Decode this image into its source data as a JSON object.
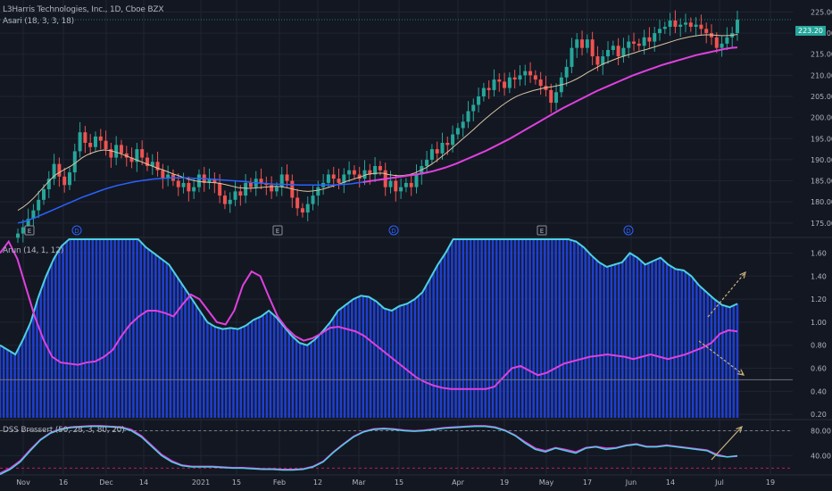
{
  "header": {
    "symbol_line": "L3Harris Technologies, Inc., 1D, Cboe BZX",
    "indicator_line": "Asari (18, 3, 3, 18)",
    "current_price": "223.20"
  },
  "panes": {
    "arun_label": "Arun (14, 1, 12)",
    "dss_label": "DSS Bressert (50, 28, 3, 80, 20)"
  },
  "colors": {
    "background": "#131722",
    "up": "#26a69a",
    "down": "#ef5350",
    "ma_fast": "#d8c7a3",
    "ma_slow": "#e040e0",
    "ma_slow_early": "#2962ff",
    "histogram": "#1e3fcf",
    "cyan_line": "#4dd0e1",
    "magenta_line": "#e040e0",
    "arrow": "#c8b27a",
    "grid": "#1f2433"
  },
  "event_markers": [
    {
      "label": "E",
      "date": "Oct 30"
    },
    {
      "label": "D",
      "date": "Nov 19"
    },
    {
      "label": "E",
      "date": "Jan 29"
    },
    {
      "label": "D",
      "date": "Mar 4"
    },
    {
      "label": "E",
      "date": "Apr 30"
    },
    {
      "label": "D",
      "date": "May 28"
    }
  ],
  "chart_data": [
    {
      "type": "candlestick",
      "title": "L3Harris Technologies, Inc., 1D, Cboe BZX",
      "ylim": [
        172,
        227
      ],
      "y_ticks": [
        175,
        180,
        185,
        190,
        195,
        200,
        205,
        210,
        215,
        220,
        225
      ],
      "x_ticks": [
        "Nov",
        "16",
        "Dec",
        "14",
        "2021",
        "15",
        "Feb",
        "12",
        "Mar",
        "15",
        "Apr",
        "19",
        "May",
        "17",
        "Jun",
        "14",
        "Jul",
        "19"
      ],
      "last_price": 223.2,
      "closes": [
        172.5,
        174,
        176,
        178,
        180.5,
        183,
        185.5,
        189,
        186,
        184,
        187,
        192,
        196.5,
        194,
        193,
        195.5,
        194.5,
        192.5,
        190.5,
        193.5,
        191.5,
        190.5,
        189.5,
        192.5,
        190.5,
        188.5,
        189.5,
        187.5,
        185.5,
        186.5,
        185,
        183.5,
        184.5,
        182.5,
        183.5,
        186.5,
        184.5,
        185.5,
        184.5,
        181.5,
        179.5,
        180.5,
        182.5,
        181.5,
        184.5,
        183.5,
        185.5,
        184.5,
        184,
        182.5,
        183.5,
        186.5,
        185,
        181,
        178.5,
        177.5,
        179.5,
        181.5,
        183.5,
        184.5,
        186.5,
        185.5,
        184.5,
        186.5,
        187.5,
        186.5,
        185.5,
        187.5,
        186.5,
        188.5,
        187.5,
        183.5,
        185,
        182.5,
        183.5,
        184.5,
        183.5,
        186.5,
        188.5,
        190,
        192.5,
        191.5,
        194,
        193.5,
        196,
        197.5,
        199,
        201.5,
        203,
        205,
        207,
        206.5,
        209,
        208.5,
        207,
        209.5,
        209,
        210,
        211,
        210,
        209,
        207.5,
        206.5,
        203.5,
        206,
        209.5,
        212,
        216.5,
        218.5,
        216.5,
        218.5,
        214.5,
        212.5,
        214.5,
        216,
        217,
        214.5,
        216.5,
        218,
        217.5,
        217,
        219,
        218,
        220,
        221,
        221.5,
        223,
        221.5,
        222,
        222.5,
        221.5,
        222,
        221,
        220,
        219,
        216.5,
        217.5,
        219,
        220,
        223.2
      ],
      "ma_fast": [
        178,
        178.8,
        179.8,
        181,
        182.4,
        183.8,
        185.2,
        186.4,
        187.2,
        187.9,
        188.6,
        189.5,
        190.5,
        191.2,
        191.7,
        192.1,
        192.3,
        192.2,
        191.9,
        191.5,
        191,
        190.5,
        190,
        189.5,
        189,
        188.5,
        188,
        187.6,
        187.1,
        186.6,
        186.2,
        185.7,
        185.3,
        185,
        184.8,
        184.7,
        184.6,
        184.5,
        184.3,
        184,
        183.7,
        183.4,
        183.3,
        183.2,
        183.3,
        183.4,
        183.5,
        183.6,
        183.7,
        183.6,
        183.4,
        183.1,
        182.8,
        182.6,
        182.5,
        182.6,
        182.8,
        183.1,
        183.5,
        183.9,
        184.3,
        184.8,
        185.2,
        185.6,
        186,
        186.5,
        186.7,
        186.8,
        186.8,
        186.5,
        186.3,
        186.2,
        186.3,
        186.5,
        186.9,
        187.5,
        188.1,
        188.9,
        189.8,
        190.8,
        191.8,
        192.9,
        194,
        195.1,
        196.2,
        197.3,
        198.5,
        199.6,
        200.7,
        201.7,
        202.7,
        203.6,
        204.4,
        205.1,
        205.6,
        206,
        206.4,
        206.7,
        207,
        207.2,
        207.4,
        207.7,
        208,
        208.5,
        209.1,
        209.8,
        210.6,
        211.3,
        212,
        212.7,
        213.2,
        213.7,
        214.2,
        214.6,
        215,
        215.4,
        215.8,
        216.1,
        216.5,
        216.9,
        217.3,
        217.7,
        218.1,
        218.5,
        218.8,
        219.1,
        219.3,
        219.5,
        219.6,
        219.6,
        219.5,
        219.4,
        219.4,
        219.5,
        219.7
      ],
      "ma_slow": [
        175,
        175.3,
        175.8,
        176.3,
        176.9,
        177.5,
        178.1,
        178.7,
        179.3,
        179.9,
        180.5,
        181.1,
        181.6,
        182.1,
        182.6,
        183.1,
        183.5,
        183.9,
        184.2,
        184.5,
        184.8,
        185,
        185.2,
        185.4,
        185.5,
        185.6,
        185.7,
        185.7,
        185.7,
        185.7,
        185.6,
        185.6,
        185.5,
        185.4,
        185.3,
        185.2,
        185.1,
        185,
        184.9,
        184.8,
        184.6,
        184.5,
        184.4,
        184.3,
        184.2,
        184.2,
        184.1,
        184.1,
        184,
        184,
        184,
        184,
        184,
        184,
        184,
        184.1,
        184.2,
        184.3,
        184.5,
        184.7,
        184.9,
        185.1,
        185.3,
        185.5,
        185.7,
        185.9,
        186.1,
        186.3,
        186.5,
        186.7,
        187,
        187.3,
        187.7,
        188.1,
        188.6,
        189.1,
        189.7,
        190.3,
        190.9,
        191.5,
        192.1,
        192.8,
        193.5,
        194.2,
        194.9,
        195.7,
        196.5,
        197.3,
        198.1,
        198.9,
        199.7,
        200.5,
        201.3,
        202.1,
        202.8,
        203.5,
        204.2,
        204.9,
        205.6,
        206.3,
        206.9,
        207.5,
        208.1,
        208.7,
        209.3,
        209.9,
        210.4,
        210.9,
        211.4,
        211.9,
        212.4,
        212.8,
        213.2,
        213.6,
        214,
        214.4,
        214.8,
        215.1,
        215.4,
        215.7,
        216,
        216.3,
        216.5,
        216.6
      ]
    },
    {
      "type": "area",
      "title": "Arun (14, 1, 12)",
      "ylim": [
        0.17,
        1.72
      ],
      "y_ticks": [
        0.2,
        0.4,
        0.6,
        0.8,
        1.0,
        1.2,
        1.4,
        1.6
      ],
      "histogram": [
        0.8,
        0.76,
        0.72,
        0.85,
        1.0,
        1.22,
        1.4,
        1.55,
        1.66,
        1.72,
        1.72,
        1.72,
        1.72,
        1.72,
        1.72,
        1.72,
        1.72,
        1.72,
        1.72,
        1.65,
        1.6,
        1.55,
        1.5,
        1.4,
        1.3,
        1.2,
        1.1,
        1.0,
        0.96,
        0.94,
        0.95,
        0.94,
        0.97,
        1.02,
        1.05,
        1.1,
        1.04,
        0.96,
        0.88,
        0.82,
        0.8,
        0.85,
        0.92,
        1.0,
        1.1,
        1.15,
        1.2,
        1.23,
        1.22,
        1.18,
        1.12,
        1.1,
        1.14,
        1.16,
        1.2,
        1.26,
        1.38,
        1.5,
        1.6,
        1.72,
        1.72,
        1.72,
        1.72,
        1.72,
        1.72,
        1.72,
        1.72,
        1.72,
        1.72,
        1.72,
        1.72,
        1.72,
        1.72,
        1.72,
        1.72,
        1.7,
        1.65,
        1.58,
        1.52,
        1.48,
        1.5,
        1.52,
        1.6,
        1.56,
        1.5,
        1.53,
        1.56,
        1.5,
        1.46,
        1.45,
        1.4,
        1.32,
        1.26,
        1.2,
        1.15,
        1.13,
        1.16
      ],
      "magenta": [
        1.6,
        1.7,
        1.55,
        1.3,
        1.05,
        0.85,
        0.7,
        0.65,
        0.64,
        0.63,
        0.65,
        0.66,
        0.7,
        0.76,
        0.88,
        0.98,
        1.05,
        1.1,
        1.1,
        1.08,
        1.05,
        1.15,
        1.24,
        1.2,
        1.1,
        1.0,
        0.98,
        1.1,
        1.32,
        1.44,
        1.4,
        1.22,
        1.05,
        0.95,
        0.88,
        0.84,
        0.86,
        0.9,
        0.95,
        0.96,
        0.94,
        0.92,
        0.88,
        0.82,
        0.76,
        0.7,
        0.64,
        0.58,
        0.52,
        0.48,
        0.45,
        0.43,
        0.42,
        0.42,
        0.42,
        0.42,
        0.42,
        0.44,
        0.52,
        0.6,
        0.62,
        0.58,
        0.54,
        0.56,
        0.6,
        0.64,
        0.66,
        0.68,
        0.7,
        0.71,
        0.72,
        0.71,
        0.7,
        0.68,
        0.7,
        0.72,
        0.7,
        0.68,
        0.7,
        0.72,
        0.75,
        0.78,
        0.82,
        0.9,
        0.93,
        0.92
      ],
      "annotation": "trend arrows diverging"
    },
    {
      "type": "line",
      "title": "DSS Bressert (50, 28, 3, 80, 20)",
      "ylim": [
        12,
        95
      ],
      "y_ticks": [
        40.0,
        80.0
      ],
      "upper_level": 80,
      "lower_level": 20,
      "cyan": [
        10,
        18,
        30,
        48,
        65,
        76,
        82,
        85,
        86,
        87,
        87,
        86,
        85,
        80,
        70,
        55,
        40,
        30,
        24,
        22,
        22,
        22,
        21,
        20,
        20,
        19,
        18,
        18,
        17,
        17,
        18,
        22,
        30,
        45,
        58,
        70,
        78,
        82,
        83,
        82,
        80,
        79,
        80,
        82,
        84,
        85,
        86,
        87,
        87,
        85,
        80,
        72,
        60,
        50,
        46,
        52,
        48,
        44,
        52,
        54,
        50,
        52,
        56,
        58,
        54,
        54,
        56,
        54,
        52,
        50,
        48,
        40,
        38,
        40
      ],
      "magenta": [
        12,
        20,
        32,
        50,
        66,
        77,
        83,
        86,
        87,
        88,
        88,
        87,
        86,
        82,
        72,
        57,
        42,
        32,
        25,
        23,
        23,
        23,
        22,
        21,
        21,
        20,
        19,
        19,
        18,
        18,
        19,
        23,
        31,
        46,
        59,
        71,
        79,
        83,
        84,
        83,
        81,
        80,
        81,
        83,
        85,
        86,
        87,
        88,
        88,
        86,
        81,
        73,
        62,
        52,
        48,
        53,
        50,
        46,
        53,
        55,
        52,
        53,
        57,
        59,
        55,
        55,
        57,
        55,
        53,
        51,
        49,
        42,
        38,
        39
      ]
    }
  ]
}
